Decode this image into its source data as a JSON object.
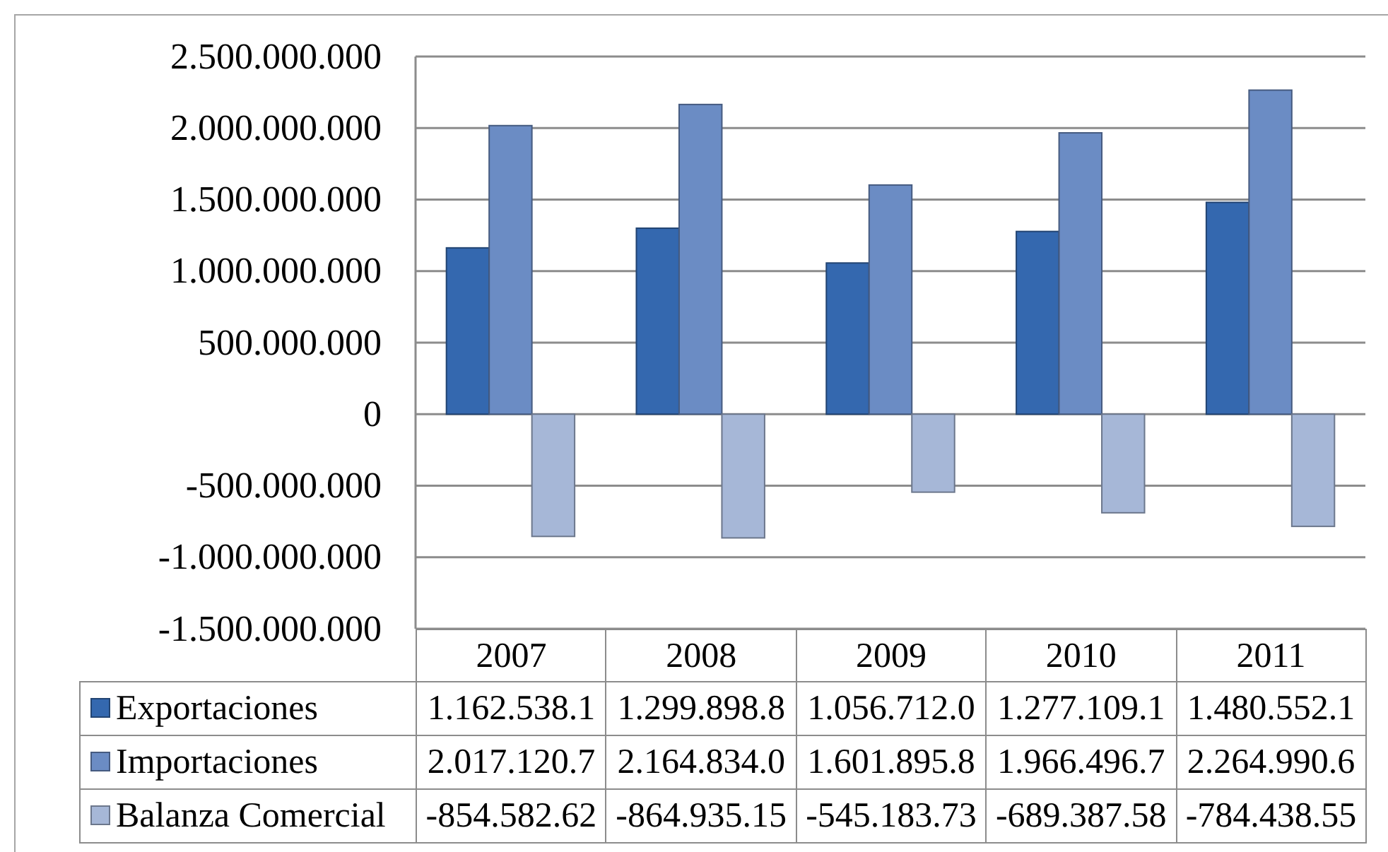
{
  "chart_data": {
    "type": "bar",
    "categories": [
      "2007",
      "2008",
      "2009",
      "2010",
      "2011"
    ],
    "series": [
      {
        "name": "Exportaciones",
        "color": "#3468af",
        "values": [
          1162538100,
          1299898800,
          1056712000,
          1277109100,
          1480552100
        ],
        "value_labels": [
          "1.162.538.1",
          "1.299.898.8",
          "1.056.712.0",
          "1.277.109.1",
          "1.480.552.1"
        ]
      },
      {
        "name": "Importaciones",
        "color": "#6b8cc4",
        "values": [
          2017120700,
          2164834000,
          1601895800,
          1966496700,
          2264990600
        ],
        "value_labels": [
          "2.017.120.7",
          "2.164.834.0",
          "1.601.895.8",
          "1.966.496.7",
          "2.264.990.6"
        ]
      },
      {
        "name": "Balanza Comercial",
        "color": "#a6b7d7",
        "values": [
          -854582620,
          -864935150,
          -545183730,
          -689387580,
          -784438550
        ],
        "value_labels": [
          "-854.582.62",
          "-864.935.15",
          "-545.183.73",
          "-689.387.58",
          "-784.438.55"
        ]
      }
    ],
    "ylim": [
      -1500000000,
      2500000000
    ],
    "yticks": [
      {
        "value": -1500000000,
        "label": "-1.500.000.000"
      },
      {
        "value": -1000000000,
        "label": "-1.000.000.000"
      },
      {
        "value": -500000000,
        "label": "-500.000.000"
      },
      0,
      {
        "value": 500000000,
        "label": "500.000.000"
      },
      {
        "value": 1000000000,
        "label": "1.000.000.000"
      },
      {
        "value": 1500000000,
        "label": "1.500.000.000"
      },
      {
        "value": 2000000000,
        "label": "2.000.000.000"
      },
      {
        "value": 2500000000,
        "label": "2.500.000.000"
      }
    ],
    "grid": "y",
    "legend": "bottom"
  }
}
